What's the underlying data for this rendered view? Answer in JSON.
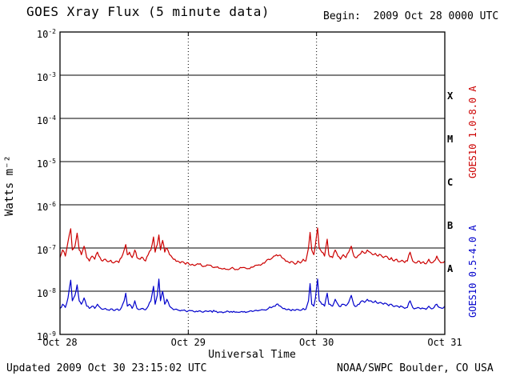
{
  "header": {
    "title": "GOES Xray Flux (5 minute data)",
    "begin_label": "Begin:  2009 Oct 28 0000 UTC"
  },
  "footer": {
    "updated": "Updated 2009 Oct 30 23:15:02 UTC",
    "credit": "NOAA/SWPC Boulder, CO USA"
  },
  "chart_data": {
    "type": "line",
    "title": "GOES Xray Flux (5 minute data)",
    "xlabel": "Universal Time",
    "ylabel": "Watts m⁻²",
    "x_unit": "hours since 2009 Oct 28 0000 UTC",
    "x_range_hours": [
      0,
      72
    ],
    "x_tick_labels": [
      "Oct 28",
      "Oct 29",
      "Oct 30",
      "Oct 31"
    ],
    "y_scale": "log",
    "y_tick_exponents": [
      -2,
      -3,
      -4,
      -5,
      -6,
      -7,
      -8,
      -9
    ],
    "y_range": [
      1e-09,
      0.01
    ],
    "grid": {
      "horizontal_at_exponents": [
        -3,
        -4,
        -5,
        -6,
        -7,
        -8
      ],
      "vertical_dotted_at_hours": [
        24,
        48
      ]
    },
    "flare_class_labels": [
      {
        "label": "X",
        "band_exponents": [
          -4,
          -3
        ]
      },
      {
        "label": "M",
        "band_exponents": [
          -5,
          -4
        ]
      },
      {
        "label": "C",
        "band_exponents": [
          -6,
          -5
        ]
      },
      {
        "label": "B",
        "band_exponents": [
          -7,
          -6
        ]
      },
      {
        "label": "A",
        "band_exponents": [
          -8,
          -7
        ]
      }
    ],
    "legend_position": "right-rotated",
    "series": [
      {
        "name": "GOES10 1.0-8.0 A",
        "color": "#cc0000",
        "points": [
          [
            0,
            6e-08
          ],
          [
            0.5,
            9e-08
          ],
          [
            1,
            6.5e-08
          ],
          [
            1.5,
            1.4e-07
          ],
          [
            2,
            2.8e-07
          ],
          [
            2.3,
            9e-08
          ],
          [
            2.8,
            1.1e-07
          ],
          [
            3.2,
            2.2e-07
          ],
          [
            3.6,
            9e-08
          ],
          [
            4,
            7e-08
          ],
          [
            4.5,
            1.1e-07
          ],
          [
            5,
            6e-08
          ],
          [
            5.5,
            5e-08
          ],
          [
            6,
            6.5e-08
          ],
          [
            6.5,
            5.5e-08
          ],
          [
            7,
            8e-08
          ],
          [
            7.5,
            6e-08
          ],
          [
            8,
            5e-08
          ],
          [
            8.5,
            5.5e-08
          ],
          [
            9,
            4.8e-08
          ],
          [
            9.5,
            5.2e-08
          ],
          [
            10,
            4.5e-08
          ],
          [
            10.5,
            5e-08
          ],
          [
            11,
            4.6e-08
          ],
          [
            11.5,
            6e-08
          ],
          [
            12,
            9e-08
          ],
          [
            12.3,
            1.2e-07
          ],
          [
            12.6,
            7e-08
          ],
          [
            13,
            8e-08
          ],
          [
            13.5,
            6e-08
          ],
          [
            14,
            9e-08
          ],
          [
            14.4,
            6e-08
          ],
          [
            15,
            5.5e-08
          ],
          [
            15.5,
            6e-08
          ],
          [
            16,
            5e-08
          ],
          [
            16.5,
            7e-08
          ],
          [
            17,
            9e-08
          ],
          [
            17.5,
            1.8e-07
          ],
          [
            17.8,
            8e-08
          ],
          [
            18.2,
            1.2e-07
          ],
          [
            18.5,
            2e-07
          ],
          [
            18.8,
            9e-08
          ],
          [
            19.2,
            1.5e-07
          ],
          [
            19.6,
            8e-08
          ],
          [
            20,
            1e-07
          ],
          [
            20.5,
            7e-08
          ],
          [
            21,
            6e-08
          ],
          [
            21.5,
            5.5e-08
          ],
          [
            22,
            5e-08
          ],
          [
            22.5,
            4.5e-08
          ],
          [
            23,
            4.8e-08
          ],
          [
            23.5,
            4.2e-08
          ],
          [
            24,
            4.5e-08
          ],
          [
            25,
            4e-08
          ],
          [
            26,
            4.2e-08
          ],
          [
            27,
            3.8e-08
          ],
          [
            28,
            4e-08
          ],
          [
            29,
            3.6e-08
          ],
          [
            30,
            3.4e-08
          ],
          [
            31,
            3.2e-08
          ],
          [
            32,
            3.4e-08
          ],
          [
            33,
            3.2e-08
          ],
          [
            34,
            3.5e-08
          ],
          [
            35,
            3.3e-08
          ],
          [
            36,
            3.6e-08
          ],
          [
            37,
            4e-08
          ],
          [
            38,
            4.5e-08
          ],
          [
            39,
            5.5e-08
          ],
          [
            40,
            6.5e-08
          ],
          [
            40.5,
            7e-08
          ],
          [
            41,
            6.8e-08
          ],
          [
            41.5,
            6e-08
          ],
          [
            42,
            5.5e-08
          ],
          [
            42.5,
            5e-08
          ],
          [
            43,
            4.5e-08
          ],
          [
            43.5,
            4.8e-08
          ],
          [
            44,
            4.2e-08
          ],
          [
            44.5,
            5e-08
          ],
          [
            45,
            4.5e-08
          ],
          [
            45.5,
            5.5e-08
          ],
          [
            46,
            5e-08
          ],
          [
            46.5,
            1e-07
          ],
          [
            46.8,
            2.3e-07
          ],
          [
            47.1,
            9e-08
          ],
          [
            47.5,
            7e-08
          ],
          [
            47.8,
            1.2e-07
          ],
          [
            48.2,
            2.9e-07
          ],
          [
            48.5,
            1e-07
          ],
          [
            49,
            8e-08
          ],
          [
            49.5,
            6.5e-08
          ],
          [
            50,
            1.6e-07
          ],
          [
            50.3,
            7e-08
          ],
          [
            51,
            6e-08
          ],
          [
            51.5,
            9e-08
          ],
          [
            52,
            6.5e-08
          ],
          [
            52.5,
            5.5e-08
          ],
          [
            53,
            7e-08
          ],
          [
            53.5,
            6e-08
          ],
          [
            54,
            8e-08
          ],
          [
            54.5,
            1.1e-07
          ],
          [
            55,
            6.5e-08
          ],
          [
            55.5,
            6e-08
          ],
          [
            56,
            7e-08
          ],
          [
            56.5,
            8.5e-08
          ],
          [
            57,
            7.5e-08
          ],
          [
            57.5,
            9e-08
          ],
          [
            58,
            8e-08
          ],
          [
            58.5,
            7e-08
          ],
          [
            59,
            7.5e-08
          ],
          [
            59.5,
            6.5e-08
          ],
          [
            60,
            7e-08
          ],
          [
            60.5,
            6e-08
          ],
          [
            61,
            6.5e-08
          ],
          [
            61.5,
            5.5e-08
          ],
          [
            62,
            6e-08
          ],
          [
            62.5,
            5e-08
          ],
          [
            63,
            5.5e-08
          ],
          [
            63.5,
            4.8e-08
          ],
          [
            64,
            5.2e-08
          ],
          [
            64.5,
            4.6e-08
          ],
          [
            65,
            5e-08
          ],
          [
            65.5,
            8e-08
          ],
          [
            66,
            5e-08
          ],
          [
            66.5,
            4.5e-08
          ],
          [
            67,
            5e-08
          ],
          [
            67.5,
            4.4e-08
          ],
          [
            68,
            4.8e-08
          ],
          [
            68.5,
            4.3e-08
          ],
          [
            69,
            5.5e-08
          ],
          [
            69.5,
            4.5e-08
          ],
          [
            70,
            5e-08
          ],
          [
            70.5,
            6.5e-08
          ],
          [
            71,
            5e-08
          ],
          [
            71.5,
            4.6e-08
          ],
          [
            72,
            5e-08
          ]
        ]
      },
      {
        "name": "GOES10 0.5-4.0 A",
        "color": "#0000cc",
        "points": [
          [
            0,
            4e-09
          ],
          [
            0.5,
            5e-09
          ],
          [
            1,
            4.2e-09
          ],
          [
            1.5,
            7e-09
          ],
          [
            2,
            1.8e-08
          ],
          [
            2.3,
            6e-09
          ],
          [
            2.8,
            8e-09
          ],
          [
            3.2,
            1.4e-08
          ],
          [
            3.6,
            6e-09
          ],
          [
            4,
            5e-09
          ],
          [
            4.5,
            7e-09
          ],
          [
            5,
            4.5e-09
          ],
          [
            5.5,
            4e-09
          ],
          [
            6,
            4.5e-09
          ],
          [
            6.5,
            4e-09
          ],
          [
            7,
            5e-09
          ],
          [
            7.5,
            4.2e-09
          ],
          [
            8,
            3.8e-09
          ],
          [
            8.5,
            4e-09
          ],
          [
            9,
            3.7e-09
          ],
          [
            9.5,
            3.9e-09
          ],
          [
            10,
            3.6e-09
          ],
          [
            10.5,
            3.8e-09
          ],
          [
            11,
            3.6e-09
          ],
          [
            11.5,
            4.2e-09
          ],
          [
            12,
            6e-09
          ],
          [
            12.3,
            9e-09
          ],
          [
            12.6,
            4.5e-09
          ],
          [
            13,
            5e-09
          ],
          [
            13.5,
            4e-09
          ],
          [
            14,
            6e-09
          ],
          [
            14.4,
            4e-09
          ],
          [
            15,
            3.8e-09
          ],
          [
            15.5,
            4e-09
          ],
          [
            16,
            3.7e-09
          ],
          [
            16.5,
            4.5e-09
          ],
          [
            17,
            6e-09
          ],
          [
            17.5,
            1.3e-08
          ],
          [
            17.8,
            5e-09
          ],
          [
            18.2,
            8e-09
          ],
          [
            18.5,
            1.9e-08
          ],
          [
            18.8,
            6e-09
          ],
          [
            19.2,
            1e-08
          ],
          [
            19.6,
            5e-09
          ],
          [
            20,
            6.5e-09
          ],
          [
            20.5,
            4.5e-09
          ],
          [
            21,
            4e-09
          ],
          [
            21.5,
            3.8e-09
          ],
          [
            22,
            3.7e-09
          ],
          [
            22.5,
            3.5e-09
          ],
          [
            23,
            3.6e-09
          ],
          [
            24,
            3.5e-09
          ],
          [
            25,
            3.4e-09
          ],
          [
            26,
            3.5e-09
          ],
          [
            27,
            3.4e-09
          ],
          [
            28,
            3.5e-09
          ],
          [
            29,
            3.4e-09
          ],
          [
            30,
            3.3e-09
          ],
          [
            31,
            3.3e-09
          ],
          [
            32,
            3.4e-09
          ],
          [
            33,
            3.3e-09
          ],
          [
            34,
            3.4e-09
          ],
          [
            35,
            3.3e-09
          ],
          [
            36,
            3.4e-09
          ],
          [
            37,
            3.5e-09
          ],
          [
            38,
            3.7e-09
          ],
          [
            39,
            4e-09
          ],
          [
            40,
            4.5e-09
          ],
          [
            40.5,
            5e-09
          ],
          [
            41,
            4.6e-09
          ],
          [
            41.5,
            4.2e-09
          ],
          [
            42,
            4e-09
          ],
          [
            43,
            3.7e-09
          ],
          [
            44,
            3.6e-09
          ],
          [
            45,
            3.6e-09
          ],
          [
            45.5,
            4e-09
          ],
          [
            46,
            3.8e-09
          ],
          [
            46.5,
            6e-09
          ],
          [
            46.8,
            1.5e-08
          ],
          [
            47.1,
            5e-09
          ],
          [
            47.5,
            4.5e-09
          ],
          [
            47.8,
            7e-09
          ],
          [
            48.2,
            1.9e-08
          ],
          [
            48.5,
            6e-09
          ],
          [
            49,
            5e-09
          ],
          [
            49.5,
            4.5e-09
          ],
          [
            50,
            9e-09
          ],
          [
            50.3,
            5e-09
          ],
          [
            51,
            4.5e-09
          ],
          [
            51.5,
            6.5e-09
          ],
          [
            52,
            5e-09
          ],
          [
            52.5,
            4.4e-09
          ],
          [
            53,
            5e-09
          ],
          [
            53.5,
            4.6e-09
          ],
          [
            54,
            5.5e-09
          ],
          [
            54.5,
            8e-09
          ],
          [
            55,
            4.8e-09
          ],
          [
            55.5,
            4.5e-09
          ],
          [
            56,
            5e-09
          ],
          [
            56.5,
            6e-09
          ],
          [
            57,
            5.5e-09
          ],
          [
            57.5,
            6.5e-09
          ],
          [
            58,
            6e-09
          ],
          [
            58.5,
            5.5e-09
          ],
          [
            59,
            6e-09
          ],
          [
            59.5,
            5.2e-09
          ],
          [
            60,
            5.5e-09
          ],
          [
            60.5,
            5e-09
          ],
          [
            61,
            5.2e-09
          ],
          [
            61.5,
            4.6e-09
          ],
          [
            62,
            5e-09
          ],
          [
            62.5,
            4.4e-09
          ],
          [
            63,
            4.6e-09
          ],
          [
            63.5,
            4.2e-09
          ],
          [
            64,
            4.4e-09
          ],
          [
            64.5,
            4e-09
          ],
          [
            65,
            4.2e-09
          ],
          [
            65.5,
            6e-09
          ],
          [
            66,
            4.2e-09
          ],
          [
            66.5,
            4e-09
          ],
          [
            67,
            4.2e-09
          ],
          [
            67.5,
            3.9e-09
          ],
          [
            68,
            4e-09
          ],
          [
            68.5,
            3.8e-09
          ],
          [
            69,
            4.5e-09
          ],
          [
            69.5,
            3.9e-09
          ],
          [
            70,
            4.2e-09
          ],
          [
            70.5,
            5e-09
          ],
          [
            71,
            4.2e-09
          ],
          [
            71.5,
            4e-09
          ],
          [
            72,
            4.5e-09
          ]
        ]
      }
    ]
  }
}
